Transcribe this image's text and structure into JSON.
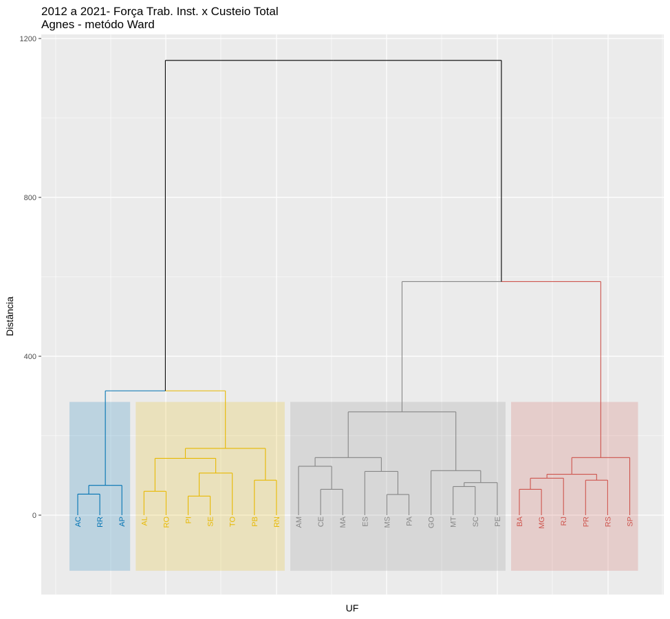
{
  "chart_data": {
    "type": "dendrogram",
    "title": "2012 a 2021- Força Trab. Inst. x Custeio Total",
    "subtitle": "Agnes - metódo Ward",
    "xlabel": "UF",
    "ylabel": "Distância",
    "ylim": [
      -260,
      1220
    ],
    "y_ticks": [
      0,
      400,
      800,
      1200
    ],
    "grid": true,
    "leaves": [
      "AC",
      "RR",
      "AP",
      "AL",
      "RO",
      "PI",
      "SE",
      "TO",
      "PB",
      "RN",
      "AM",
      "CE",
      "MA",
      "ES",
      "MS",
      "PA",
      "GO",
      "MT",
      "SC",
      "PE",
      "BA",
      "MG",
      "RJ",
      "PR",
      "RS",
      "SP"
    ],
    "clusters": [
      {
        "members": [
          "AC",
          "RR",
          "AP"
        ],
        "color": "#0072B2"
      },
      {
        "members": [
          "AL",
          "RO",
          "PI",
          "SE",
          "TO",
          "PB",
          "RN"
        ],
        "color": "#E7B800"
      },
      {
        "members": [
          "AM",
          "CE",
          "MA",
          "ES",
          "MS",
          "PA",
          "GO",
          "MT",
          "SC",
          "PE"
        ],
        "color": "#868686"
      },
      {
        "members": [
          "BA",
          "MG",
          "RJ",
          "PR",
          "RS",
          "SP"
        ],
        "color": "#CD534C"
      }
    ],
    "merges": [
      {
        "left": "AC",
        "right": "RR",
        "height": 53
      },
      {
        "left": 1,
        "right": "AP",
        "height": 75
      },
      {
        "left": "AL",
        "right": "RO",
        "height": 60
      },
      {
        "left": "PI",
        "right": "SE",
        "height": 48
      },
      {
        "left": 4,
        "right": "TO",
        "height": 106
      },
      {
        "left": 3,
        "right": 5,
        "height": 143
      },
      {
        "left": "PB",
        "right": "RN",
        "height": 88
      },
      {
        "left": 6,
        "right": 7,
        "height": 168
      },
      {
        "left": 2,
        "right": 8,
        "height": 313
      },
      {
        "left": "CE",
        "right": "MA",
        "height": 65
      },
      {
        "left": "AM",
        "right": 10,
        "height": 123
      },
      {
        "left": "MS",
        "right": "PA",
        "height": 52
      },
      {
        "left": "ES",
        "right": 12,
        "height": 110
      },
      {
        "left": 11,
        "right": 13,
        "height": 145
      },
      {
        "left": "MT",
        "right": "SC",
        "height": 72
      },
      {
        "left": 15,
        "right": "PE",
        "height": 82
      },
      {
        "left": "GO",
        "right": 16,
        "height": 112
      },
      {
        "left": 14,
        "right": 17,
        "height": 260
      },
      {
        "left": "BA",
        "right": "MG",
        "height": 65
      },
      {
        "left": 19,
        "right": "RJ",
        "height": 93
      },
      {
        "left": "PR",
        "right": "RS",
        "height": 88
      },
      {
        "left": 20,
        "right": 21,
        "height": 103
      },
      {
        "left": 22,
        "right": "SP",
        "height": 145
      },
      {
        "left": 18,
        "right": 23,
        "height": 588
      },
      {
        "left": 9,
        "right": 24,
        "height": 1145
      }
    ],
    "root_color": "#000000",
    "rect_y_range": [
      -140,
      285
    ]
  }
}
